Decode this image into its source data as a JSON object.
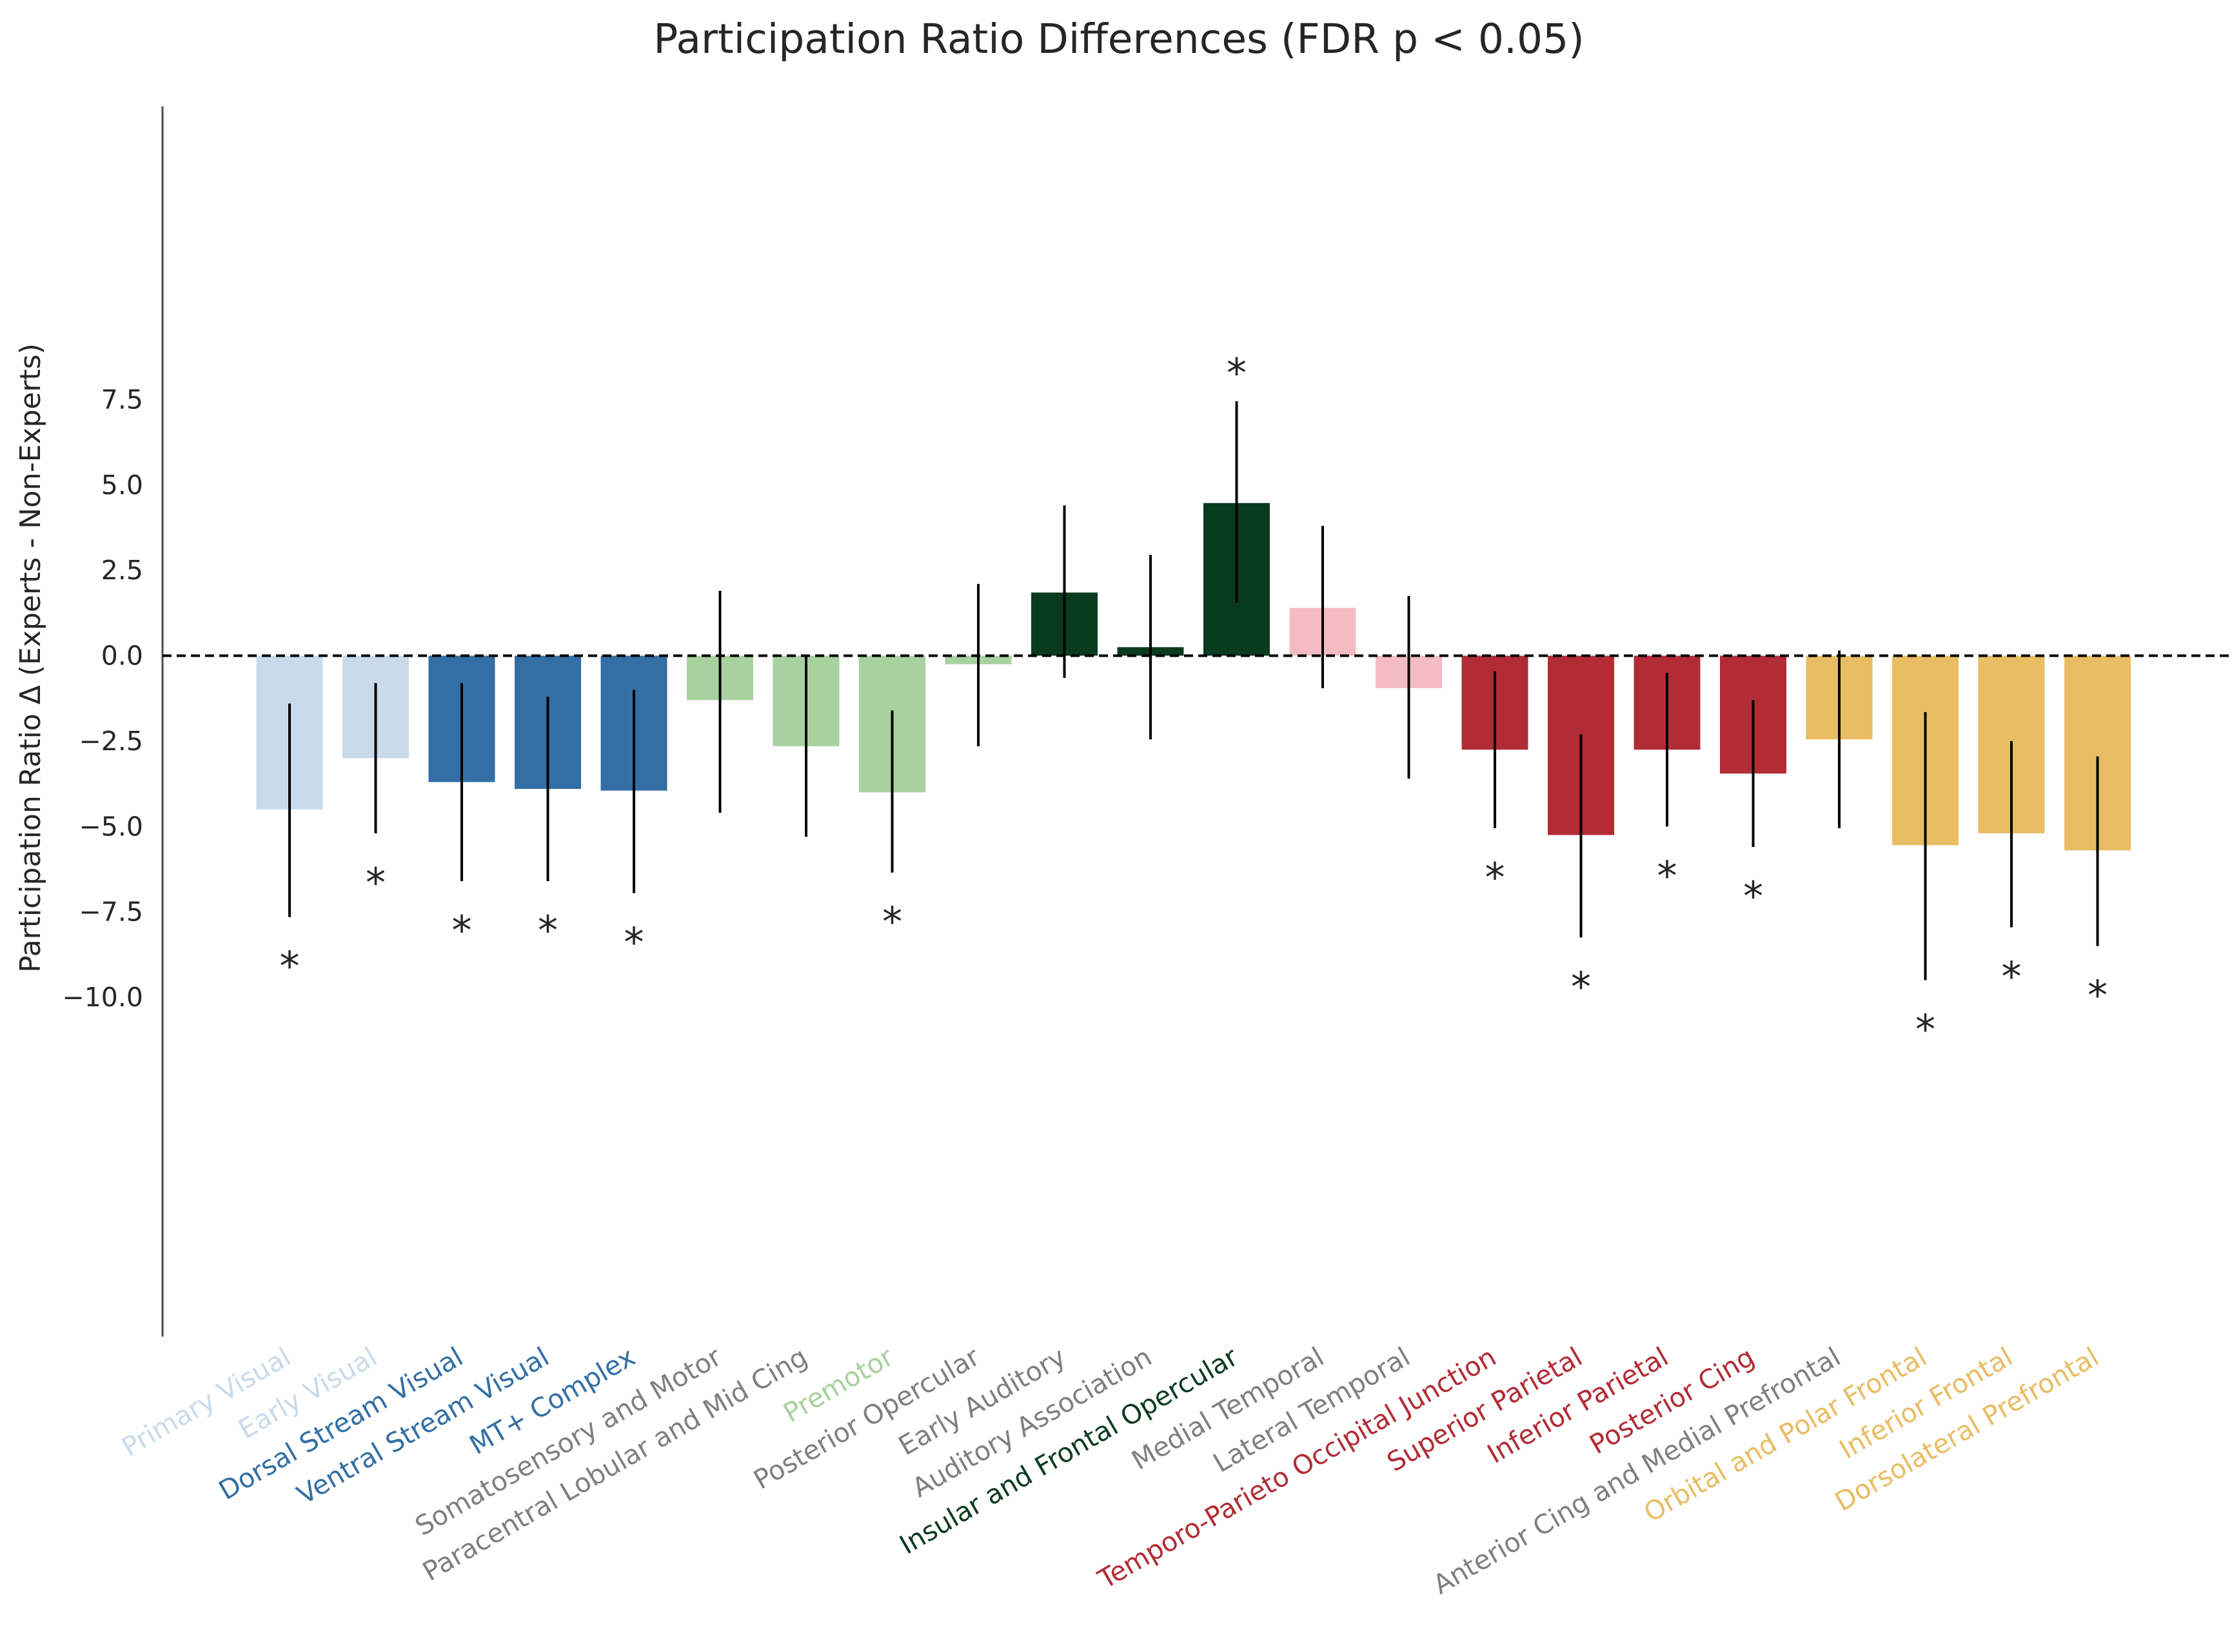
{
  "chart_data": {
    "type": "bar",
    "title": "Participation Ratio Differences (FDR p < 0.05)",
    "xlabel": "",
    "ylabel": "Participation Ratio Δ (Experts - Non-Experts)",
    "ylim": [
      -10.0,
      8.1
    ],
    "yticks": [
      7.5,
      5.0,
      2.5,
      0.0,
      -2.5,
      -5.0,
      -7.5,
      -10.0
    ],
    "ytick_labels": [
      "7.5",
      "5.0",
      "2.5",
      "0.0",
      "−2.5",
      "−5.0",
      "−7.5",
      "−10.0"
    ],
    "reference_line": {
      "y": 0,
      "style": "dashed",
      "color": "#000000"
    },
    "grid": false,
    "significance_marker": "*",
    "categories": [
      "Primary Visual",
      "Early Visual",
      "Dorsal Stream Visual",
      "Ventral Stream Visual",
      "MT+ Complex",
      "Somatosensory and Motor",
      "Paracentral Lobular and Mid Cing",
      "Premotor",
      "Posterior Opercular",
      "Early Auditory",
      "Auditory Association",
      "Insular and Frontal Opercular",
      "Medial Temporal",
      "Lateral Temporal",
      "Temporo-Parieto Occipital Junction",
      "Superior Parietal",
      "Inferior Parietal",
      "Posterior Cing",
      "Anterior Cing and Medial Prefrontal",
      "Orbital and Polar Frontal",
      "Inferior Frontal",
      "Dorsolateral Prefrontal"
    ],
    "values": [
      -4.5,
      -3.0,
      -3.7,
      -3.9,
      -3.95,
      -1.3,
      -2.65,
      -4.0,
      -0.25,
      1.85,
      0.25,
      4.47,
      1.4,
      -0.95,
      -2.75,
      -5.25,
      -2.75,
      -3.45,
      -2.45,
      -5.55,
      -5.2,
      -5.7
    ],
    "error_low": [
      -7.65,
      -5.2,
      -6.6,
      -6.6,
      -6.95,
      -4.6,
      -5.3,
      -6.35,
      -2.65,
      -0.65,
      -2.45,
      1.55,
      -0.95,
      -3.6,
      -5.05,
      -8.25,
      -5.0,
      -5.6,
      -5.05,
      -9.5,
      -7.95,
      -8.5
    ],
    "error_high": [
      -1.4,
      -0.8,
      -0.8,
      -1.2,
      -1.0,
      1.9,
      0.0,
      -1.6,
      2.1,
      4.4,
      2.95,
      7.45,
      3.8,
      1.75,
      -0.45,
      -2.3,
      -0.5,
      -1.3,
      0.15,
      -1.65,
      -2.5,
      -2.95
    ],
    "significant": [
      true,
      true,
      true,
      true,
      true,
      false,
      false,
      true,
      false,
      false,
      false,
      true,
      false,
      false,
      true,
      true,
      true,
      true,
      false,
      true,
      true,
      true
    ],
    "bar_colors": [
      "#c9dbeb",
      "#c9dbeb",
      "#336fa4",
      "#336fa4",
      "#336fa4",
      "#a8d1a0",
      "#a8d1a0",
      "#a8d1a0",
      "#a8d1a0",
      "#0b3b1f",
      "#0b3b1f",
      "#0b3b1f",
      "#f3bcc2",
      "#f3bcc2",
      "#b22c35",
      "#b22c35",
      "#b22c35",
      "#b22c35",
      "#e8bd63",
      "#e8bd63",
      "#e8bd63",
      "#e8bd63"
    ],
    "label_colors": [
      "#c9dbeb",
      "#c9dbeb",
      "#336fa4",
      "#336fa4",
      "#336fa4",
      "#7f7f7f",
      "#7f7f7f",
      "#a8d1a0",
      "#7f7f7f",
      "#7f7f7f",
      "#7f7f7f",
      "#0b3b1f",
      "#7f7f7f",
      "#7f7f7f",
      "#b22c35",
      "#b22c35",
      "#b22c35",
      "#b22c35",
      "#7f7f7f",
      "#e8bd63",
      "#e8bd63",
      "#e8bd63"
    ]
  }
}
